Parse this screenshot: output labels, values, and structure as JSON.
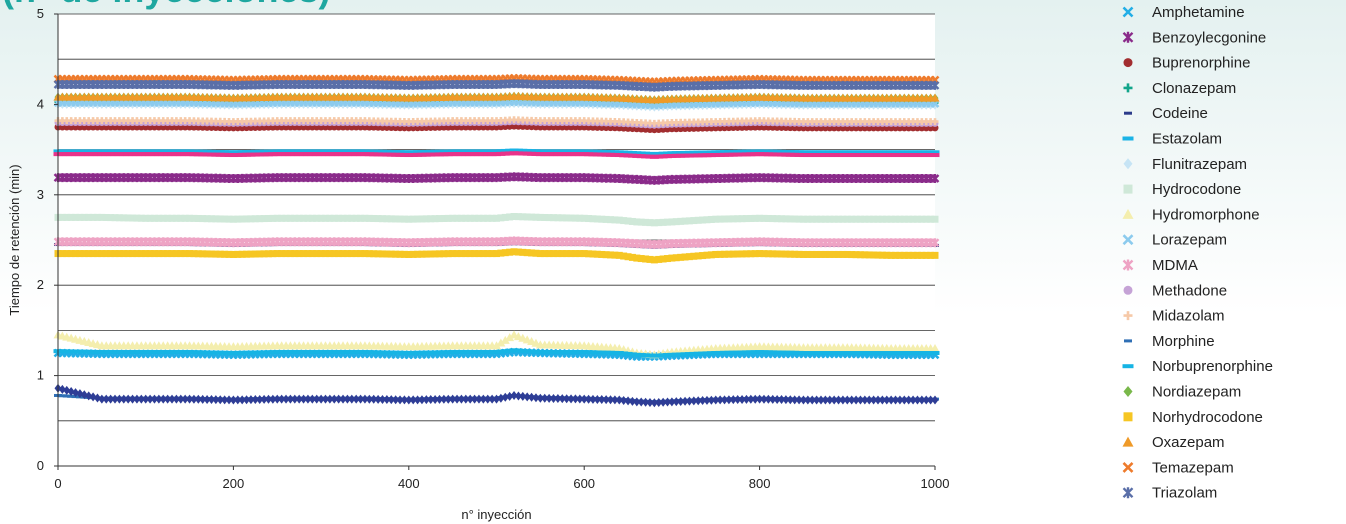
{
  "chart_data": {
    "type": "scatter",
    "title": "(n° de inyecciones)",
    "xlabel": "n° inyección",
    "ylabel": "Tiempo de retención (min)",
    "xlim": [
      0,
      1000
    ],
    "ylim": [
      0,
      5
    ],
    "xticks": [
      0,
      200,
      400,
      600,
      800,
      1000
    ],
    "yticks": [
      0,
      1,
      2,
      3,
      4,
      5
    ],
    "grid": "horizontal",
    "legend_position": "right",
    "x_sample": [
      0,
      50,
      100,
      150,
      200,
      250,
      300,
      350,
      400,
      450,
      500,
      520,
      550,
      600,
      640,
      660,
      680,
      700,
      750,
      800,
      850,
      900,
      950,
      1000
    ],
    "series": [
      {
        "name": "Amphetamine",
        "marker": "x",
        "color": "#22aee6",
        "values": [
          1.25,
          1.24,
          1.24,
          1.24,
          1.23,
          1.24,
          1.24,
          1.24,
          1.23,
          1.24,
          1.24,
          1.26,
          1.25,
          1.24,
          1.23,
          1.21,
          1.21,
          1.22,
          1.24,
          1.24,
          1.24,
          1.24,
          1.23,
          1.23
        ]
      },
      {
        "name": "Benzoylecgonine",
        "marker": "star",
        "color": "#8a2b8a",
        "values": [
          3.19,
          3.19,
          3.19,
          3.19,
          3.18,
          3.19,
          3.19,
          3.19,
          3.18,
          3.19,
          3.19,
          3.2,
          3.19,
          3.19,
          3.18,
          3.17,
          3.16,
          3.17,
          3.18,
          3.19,
          3.18,
          3.18,
          3.18,
          3.18
        ]
      },
      {
        "name": "Buprenorphine",
        "marker": "circle",
        "color": "#a22d2f",
        "values": [
          3.75,
          3.75,
          3.75,
          3.75,
          3.74,
          3.75,
          3.75,
          3.75,
          3.74,
          3.75,
          3.75,
          3.76,
          3.75,
          3.75,
          3.74,
          3.73,
          3.72,
          3.73,
          3.74,
          3.75,
          3.74,
          3.74,
          3.74,
          3.74
        ]
      },
      {
        "name": "Clonazepam",
        "marker": "plus",
        "color": "#11a58a",
        "values": [
          4.03,
          4.03,
          4.03,
          4.03,
          4.02,
          4.03,
          4.03,
          4.03,
          4.02,
          4.03,
          4.03,
          4.04,
          4.03,
          4.03,
          4.02,
          4.01,
          4.0,
          4.01,
          4.02,
          4.03,
          4.02,
          4.02,
          4.02,
          4.02
        ]
      },
      {
        "name": "Codeine",
        "marker": "dash",
        "color": "#2b3b8a",
        "values": [
          2.45,
          2.45,
          2.45,
          2.45,
          2.44,
          2.45,
          2.45,
          2.45,
          2.44,
          2.45,
          2.45,
          2.46,
          2.45,
          2.45,
          2.44,
          2.43,
          2.42,
          2.43,
          2.44,
          2.45,
          2.44,
          2.44,
          2.44,
          2.44
        ]
      },
      {
        "name": "Estazolam",
        "marker": "bar",
        "color": "#1ab3e6",
        "values": [
          3.48,
          3.48,
          3.48,
          3.48,
          3.47,
          3.48,
          3.48,
          3.48,
          3.47,
          3.48,
          3.48,
          3.49,
          3.48,
          3.48,
          3.47,
          3.46,
          3.45,
          3.46,
          3.47,
          3.48,
          3.47,
          3.47,
          3.47,
          3.47
        ]
      },
      {
        "name": "Flunitrazepam",
        "marker": "diamond",
        "color": "#c6e4f5",
        "values": [
          4.0,
          4.0,
          4.0,
          4.0,
          3.99,
          4.0,
          4.0,
          4.0,
          3.99,
          4.0,
          4.0,
          4.01,
          4.0,
          4.0,
          3.99,
          3.98,
          3.97,
          3.98,
          3.99,
          4.0,
          3.99,
          3.99,
          3.99,
          3.99
        ]
      },
      {
        "name": "Hydrocodone",
        "marker": "square",
        "color": "#cfe8d8",
        "values": [
          2.75,
          2.75,
          2.74,
          2.74,
          2.73,
          2.74,
          2.74,
          2.74,
          2.73,
          2.74,
          2.74,
          2.76,
          2.75,
          2.74,
          2.72,
          2.7,
          2.69,
          2.7,
          2.73,
          2.74,
          2.73,
          2.73,
          2.73,
          2.73
        ]
      },
      {
        "name": "Hydromorphone",
        "marker": "triangle",
        "color": "#f4eeae",
        "values": [
          1.45,
          1.33,
          1.33,
          1.33,
          1.32,
          1.33,
          1.33,
          1.33,
          1.32,
          1.33,
          1.33,
          1.45,
          1.34,
          1.33,
          1.3,
          1.25,
          1.23,
          1.26,
          1.3,
          1.32,
          1.31,
          1.31,
          1.3,
          1.3
        ]
      },
      {
        "name": "Lorazepam",
        "marker": "x",
        "color": "#8ccbee",
        "values": [
          4.02,
          4.02,
          4.02,
          4.02,
          4.01,
          4.02,
          4.02,
          4.02,
          4.01,
          4.02,
          4.02,
          4.03,
          4.02,
          4.02,
          4.01,
          4.0,
          3.99,
          4.0,
          4.01,
          4.02,
          4.01,
          4.01,
          4.01,
          4.01
        ]
      },
      {
        "name": "MDMA",
        "marker": "star",
        "color": "#eea3c4",
        "values": [
          2.48,
          2.48,
          2.48,
          2.48,
          2.47,
          2.48,
          2.48,
          2.48,
          2.47,
          2.48,
          2.48,
          2.49,
          2.48,
          2.48,
          2.47,
          2.46,
          2.45,
          2.46,
          2.47,
          2.48,
          2.47,
          2.47,
          2.47,
          2.47
        ]
      },
      {
        "name": "Methadone",
        "marker": "circle",
        "color": "#c5a3d6",
        "values": [
          3.8,
          3.8,
          3.8,
          3.8,
          3.79,
          3.8,
          3.8,
          3.8,
          3.79,
          3.8,
          3.8,
          3.81,
          3.8,
          3.8,
          3.79,
          3.78,
          3.77,
          3.78,
          3.79,
          3.8,
          3.79,
          3.79,
          3.79,
          3.79
        ]
      },
      {
        "name": "Midazolam",
        "marker": "plus",
        "color": "#f6c9a8",
        "values": [
          3.82,
          3.82,
          3.82,
          3.82,
          3.81,
          3.82,
          3.82,
          3.82,
          3.81,
          3.82,
          3.82,
          3.83,
          3.82,
          3.82,
          3.81,
          3.8,
          3.79,
          3.8,
          3.81,
          3.82,
          3.81,
          3.81,
          3.81,
          3.81
        ]
      },
      {
        "name": "Morphine",
        "marker": "dash",
        "color": "#2f6fb5",
        "values": [
          0.78,
          0.75,
          0.75,
          0.75,
          0.74,
          0.75,
          0.75,
          0.75,
          0.74,
          0.75,
          0.75,
          0.78,
          0.76,
          0.75,
          0.74,
          0.72,
          0.71,
          0.72,
          0.74,
          0.75,
          0.74,
          0.74,
          0.74,
          0.74
        ]
      },
      {
        "name": "Norbuprenorphine",
        "marker": "bar",
        "color": "#16b4e4",
        "values": [
          1.27,
          1.26,
          1.26,
          1.26,
          1.25,
          1.26,
          1.26,
          1.26,
          1.25,
          1.26,
          1.26,
          1.28,
          1.26,
          1.26,
          1.25,
          1.23,
          1.22,
          1.23,
          1.25,
          1.26,
          1.25,
          1.25,
          1.25,
          1.25
        ]
      },
      {
        "name": "Nordiazepam",
        "marker": "diamond",
        "color": "#79b84a",
        "values": [
          4.08,
          4.08,
          4.08,
          4.08,
          4.07,
          4.08,
          4.08,
          4.08,
          4.07,
          4.08,
          4.08,
          4.09,
          4.08,
          4.08,
          4.07,
          4.06,
          4.05,
          4.06,
          4.07,
          4.08,
          4.07,
          4.07,
          4.07,
          4.07
        ]
      },
      {
        "name": "Norhydrocodone",
        "marker": "square",
        "color": "#f6c623",
        "values": [
          2.35,
          2.35,
          2.35,
          2.35,
          2.34,
          2.35,
          2.35,
          2.35,
          2.34,
          2.35,
          2.35,
          2.37,
          2.35,
          2.35,
          2.33,
          2.3,
          2.28,
          2.3,
          2.34,
          2.35,
          2.34,
          2.34,
          2.33,
          2.33
        ]
      },
      {
        "name": "Oxazepam",
        "marker": "triangle",
        "color": "#ef9a28",
        "values": [
          4.08,
          4.08,
          4.08,
          4.08,
          4.07,
          4.08,
          4.08,
          4.08,
          4.07,
          4.08,
          4.08,
          4.09,
          4.08,
          4.08,
          4.07,
          4.06,
          4.05,
          4.06,
          4.07,
          4.08,
          4.07,
          4.07,
          4.07,
          4.07
        ]
      },
      {
        "name": "Temazepam",
        "marker": "x",
        "color": "#ee7b2c",
        "values": [
          4.28,
          4.28,
          4.28,
          4.28,
          4.27,
          4.28,
          4.28,
          4.28,
          4.27,
          4.28,
          4.28,
          4.29,
          4.28,
          4.28,
          4.27,
          4.26,
          4.25,
          4.26,
          4.27,
          4.28,
          4.27,
          4.27,
          4.27,
          4.27
        ]
      },
      {
        "name": "Triazolam",
        "marker": "star",
        "color": "#5a6fa8",
        "values": [
          4.22,
          4.22,
          4.22,
          4.22,
          4.21,
          4.22,
          4.22,
          4.22,
          4.21,
          4.22,
          4.22,
          4.23,
          4.22,
          4.22,
          4.21,
          4.2,
          4.19,
          4.2,
          4.21,
          4.22,
          4.21,
          4.21,
          4.21,
          4.21
        ]
      }
    ],
    "unlisted_series": [
      {
        "color": "#e8338a",
        "marker": "bar",
        "values": [
          3.45,
          3.45,
          3.45,
          3.45,
          3.44,
          3.45,
          3.45,
          3.45,
          3.44,
          3.45,
          3.45,
          3.46,
          3.45,
          3.45,
          3.44,
          3.43,
          3.42,
          3.43,
          3.44,
          3.45,
          3.44,
          3.44,
          3.44,
          3.44
        ]
      },
      {
        "color": "#2e3d96",
        "marker": "diamond",
        "values": [
          0.86,
          0.74,
          0.74,
          0.74,
          0.73,
          0.74,
          0.74,
          0.74,
          0.73,
          0.74,
          0.74,
          0.78,
          0.75,
          0.74,
          0.73,
          0.71,
          0.7,
          0.71,
          0.73,
          0.74,
          0.73,
          0.73,
          0.73,
          0.73
        ]
      }
    ]
  }
}
